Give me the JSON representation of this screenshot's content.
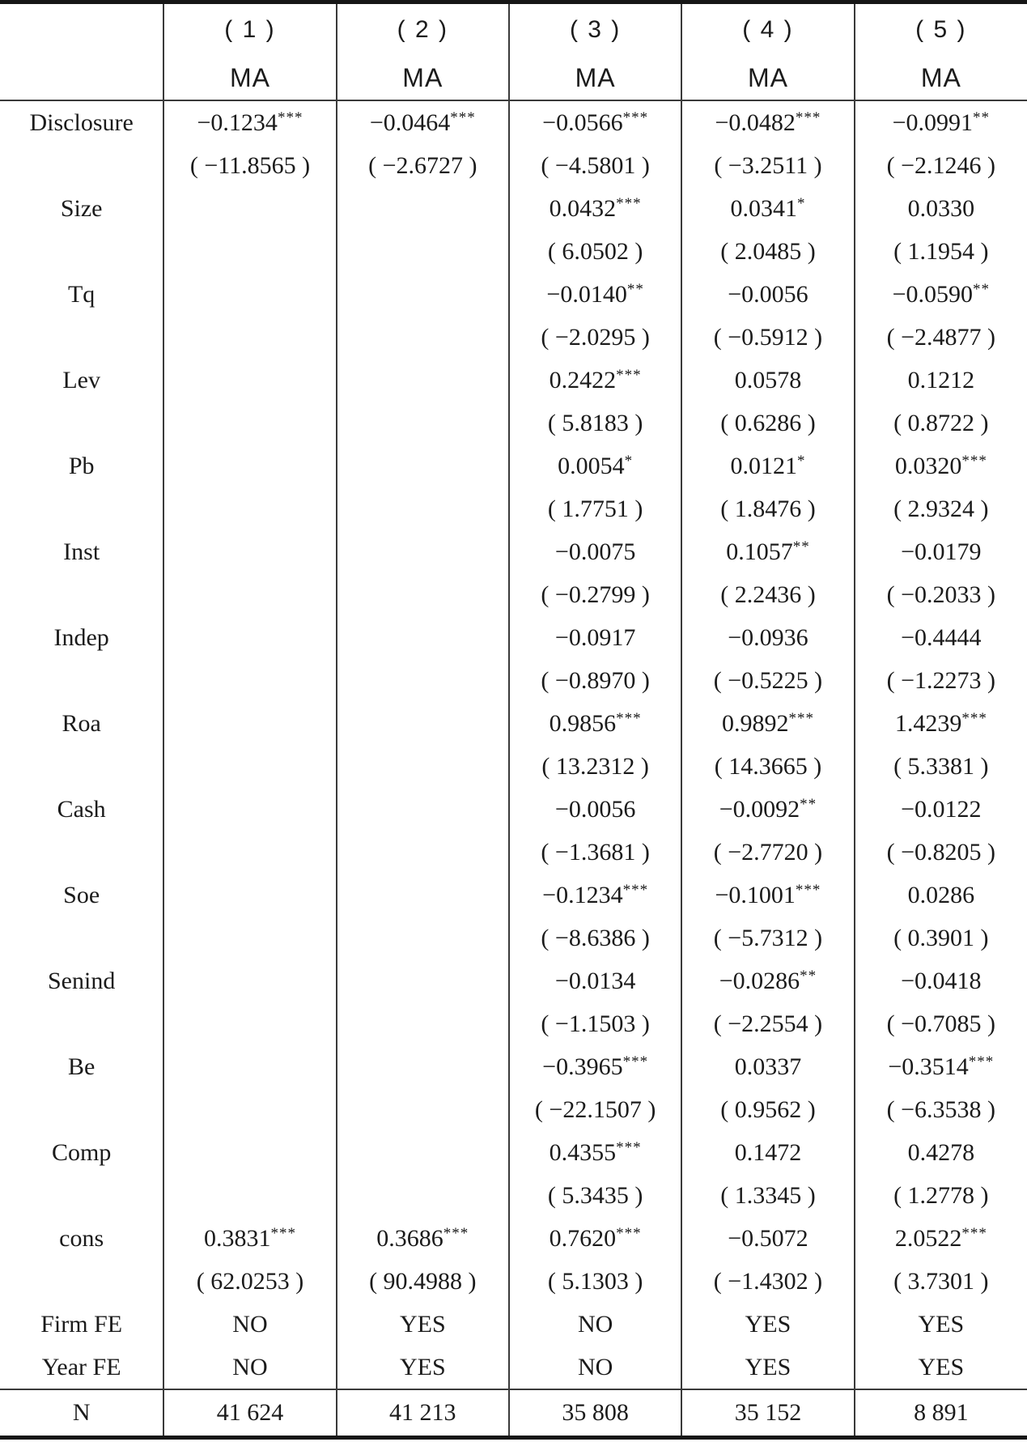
{
  "table": {
    "header": {
      "column_numbers": [
        "( 1 )",
        "( 2 )",
        "( 3 )",
        "( 4 )",
        "( 5 )"
      ],
      "dependent_variable": [
        "MA",
        "MA",
        "MA",
        "MA",
        "MA"
      ]
    },
    "variables": [
      {
        "label": "Disclosure",
        "cells": [
          {
            "v": "−0.1234",
            "s": "***",
            "t": "( −11.8565 )"
          },
          {
            "v": "−0.0464",
            "s": "***",
            "t": "( −2.6727 )"
          },
          {
            "v": "−0.0566",
            "s": "***",
            "t": "( −4.5801 )"
          },
          {
            "v": "−0.0482",
            "s": "***",
            "t": "( −3.2511 )"
          },
          {
            "v": "−0.0991",
            "s": "**",
            "t": "( −2.1246 )"
          }
        ]
      },
      {
        "label": "Size",
        "cells": [
          null,
          null,
          {
            "v": "0.0432",
            "s": "***",
            "t": "( 6.0502 )"
          },
          {
            "v": "0.0341",
            "s": "*",
            "t": "( 2.0485 )"
          },
          {
            "v": "0.0330",
            "s": "",
            "t": "( 1.1954 )"
          }
        ]
      },
      {
        "label": "Tq",
        "cells": [
          null,
          null,
          {
            "v": "−0.0140",
            "s": "**",
            "t": "( −2.0295 )"
          },
          {
            "v": "−0.0056",
            "s": "",
            "t": "( −0.5912 )"
          },
          {
            "v": "−0.0590",
            "s": "**",
            "t": "( −2.4877 )"
          }
        ]
      },
      {
        "label": "Lev",
        "cells": [
          null,
          null,
          {
            "v": "0.2422",
            "s": "***",
            "t": "( 5.8183 )"
          },
          {
            "v": "0.0578",
            "s": "",
            "t": "( 0.6286 )"
          },
          {
            "v": "0.1212",
            "s": "",
            "t": "( 0.8722 )"
          }
        ]
      },
      {
        "label": "Pb",
        "cells": [
          null,
          null,
          {
            "v": "0.0054",
            "s": "*",
            "t": "( 1.7751 )"
          },
          {
            "v": "0.0121",
            "s": "*",
            "t": "( 1.8476 )"
          },
          {
            "v": "0.0320",
            "s": "***",
            "t": "( 2.9324 )"
          }
        ]
      },
      {
        "label": "Inst",
        "cells": [
          null,
          null,
          {
            "v": "−0.0075",
            "s": "",
            "t": "( −0.2799 )"
          },
          {
            "v": "0.1057",
            "s": "**",
            "t": "( 2.2436 )"
          },
          {
            "v": "−0.0179",
            "s": "",
            "t": "( −0.2033 )"
          }
        ]
      },
      {
        "label": "Indep",
        "cells": [
          null,
          null,
          {
            "v": "−0.0917",
            "s": "",
            "t": "( −0.8970 )"
          },
          {
            "v": "−0.0936",
            "s": "",
            "t": "( −0.5225 )"
          },
          {
            "v": "−0.4444",
            "s": "",
            "t": "( −1.2273 )"
          }
        ]
      },
      {
        "label": "Roa",
        "cells": [
          null,
          null,
          {
            "v": "0.9856",
            "s": "***",
            "t": "( 13.2312 )"
          },
          {
            "v": "0.9892",
            "s": "***",
            "t": "( 14.3665 )"
          },
          {
            "v": "1.4239",
            "s": "***",
            "t": "( 5.3381 )"
          }
        ]
      },
      {
        "label": "Cash",
        "cells": [
          null,
          null,
          {
            "v": "−0.0056",
            "s": "",
            "t": "( −1.3681 )"
          },
          {
            "v": "−0.0092",
            "s": "**",
            "t": "( −2.7720 )"
          },
          {
            "v": "−0.0122",
            "s": "",
            "t": "( −0.8205 )"
          }
        ]
      },
      {
        "label": "Soe",
        "cells": [
          null,
          null,
          {
            "v": "−0.1234",
            "s": "***",
            "t": "( −8.6386 )"
          },
          {
            "v": "−0.1001",
            "s": "***",
            "t": "( −5.7312 )"
          },
          {
            "v": "0.0286",
            "s": "",
            "t": "( 0.3901 )"
          }
        ]
      },
      {
        "label": "Senind",
        "cells": [
          null,
          null,
          {
            "v": "−0.0134",
            "s": "",
            "t": "( −1.1503 )"
          },
          {
            "v": "−0.0286",
            "s": "**",
            "t": "( −2.2554 )"
          },
          {
            "v": "−0.0418",
            "s": "",
            "t": "( −0.7085 )"
          }
        ]
      },
      {
        "label": "Be",
        "cells": [
          null,
          null,
          {
            "v": "−0.3965",
            "s": "***",
            "t": "( −22.1507 )"
          },
          {
            "v": "0.0337",
            "s": "",
            "t": "( 0.9562 )"
          },
          {
            "v": "−0.3514",
            "s": "***",
            "t": "( −6.3538 )"
          }
        ]
      },
      {
        "label": "Comp",
        "cells": [
          null,
          null,
          {
            "v": "0.4355",
            "s": "***",
            "t": "( 5.3435 )"
          },
          {
            "v": "0.1472",
            "s": "",
            "t": "( 1.3345 )"
          },
          {
            "v": "0.4278",
            "s": "",
            "t": "( 1.2778 )"
          }
        ]
      },
      {
        "label": "cons",
        "cells": [
          {
            "v": "0.3831",
            "s": "***",
            "t": "( 62.0253 )"
          },
          {
            "v": "0.3686",
            "s": "***",
            "t": "( 90.4988 )"
          },
          {
            "v": "0.7620",
            "s": "***",
            "t": "( 5.1303 )"
          },
          {
            "v": "−0.5072",
            "s": "",
            "t": "( −1.4302 )"
          },
          {
            "v": "2.0522",
            "s": "***",
            "t": "( 3.7301 )"
          }
        ]
      }
    ],
    "fixed_effects_rows": [
      {
        "label": "Firm FE",
        "values": [
          "NO",
          "YES",
          "NO",
          "YES",
          "YES"
        ]
      },
      {
        "label": "Year FE",
        "values": [
          "NO",
          "YES",
          "NO",
          "YES",
          "YES"
        ]
      }
    ],
    "n_row": {
      "label": "N",
      "values": [
        "41 624",
        "41 213",
        "35 808",
        "35 152",
        "8 891"
      ]
    }
  },
  "colors": {
    "text": "#1b1b1b",
    "thin_line": "#3a3a3a",
    "thick_line": "#161616",
    "background": "#ffffff"
  }
}
